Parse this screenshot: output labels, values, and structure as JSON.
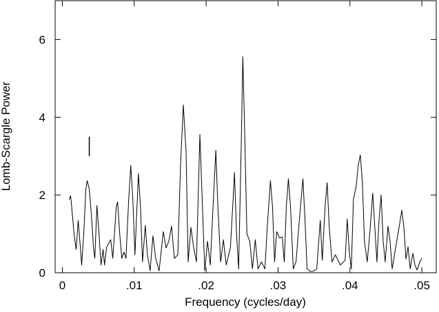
{
  "chart_data": {
    "type": "line",
    "xlabel": "Frequency (cycles/day)",
    "ylabel": "Lomb-Scargle Power",
    "xlim": [
      -0.001,
      0.052
    ],
    "ylim": [
      0,
      7
    ],
    "xticks": [
      0,
      {
        "value": 0.01,
        "label": ".01"
      },
      {
        "value": 0.02,
        "label": ".02"
      },
      {
        "value": 0.03,
        "label": ".03"
      },
      {
        "value": 0.04,
        "label": ".04"
      },
      {
        "value": 0.05,
        "label": ".05"
      }
    ],
    "yticks": [
      0,
      2,
      4,
      6
    ],
    "error_bar": {
      "x": 0.00375,
      "y": [
        3.0,
        3.5
      ]
    },
    "series": [
      {
        "color": "#000000",
        "x": [
          0.00096,
          0.00115,
          0.00125,
          0.00163,
          0.00192,
          0.00221,
          0.0024,
          0.00269,
          0.00298,
          0.00327,
          0.00346,
          0.00375,
          0.00404,
          0.00433,
          0.00452,
          0.00481,
          0.0051,
          0.00538,
          0.00567,
          0.00587,
          0.00615,
          0.00673,
          0.00702,
          0.0075,
          0.00769,
          0.00798,
          0.00827,
          0.00856,
          0.00885,
          0.00923,
          0.00952,
          0.00981,
          0.0101,
          0.01038,
          0.01058,
          0.01087,
          0.01115,
          0.01154,
          0.01183,
          0.01221,
          0.0126,
          0.01298,
          0.01346,
          0.01404,
          0.01442,
          0.01481,
          0.01519,
          0.01558,
          0.01606,
          0.01644,
          0.01683,
          0.01721,
          0.0175,
          0.01788,
          0.01827,
          0.01865,
          0.01913,
          0.01942,
          0.01981,
          0.02019,
          0.02058,
          0.02096,
          0.02135,
          0.02163,
          0.02202,
          0.0224,
          0.02279,
          0.02337,
          0.02375,
          0.02394,
          0.02423,
          0.02452,
          0.0249,
          0.0251,
          0.02538,
          0.02567,
          0.02606,
          0.02644,
          0.02683,
          0.02721,
          0.02769,
          0.02817,
          0.02856,
          0.02894,
          0.02923,
          0.02952,
          0.02981,
          0.03019,
          0.03058,
          0.03087,
          0.03115,
          0.03144,
          0.03173,
          0.03212,
          0.0325,
          0.03288,
          0.03346,
          0.03375,
          0.03404,
          0.03452,
          0.035,
          0.03538,
          0.03587,
          0.03615,
          0.03654,
          0.03683,
          0.03712,
          0.0375,
          0.03798,
          0.03865,
          0.03933,
          0.03962,
          0.0399,
          0.04019,
          0.04048,
          0.04087,
          0.04115,
          0.04144,
          0.04173,
          0.04202,
          0.0424,
          0.04279,
          0.04317,
          0.04346,
          0.04375,
          0.04404,
          0.04433,
          0.04462,
          0.0449,
          0.04529,
          0.04558,
          0.04587,
          0.04635,
          0.04683,
          0.04721,
          0.0475,
          0.04779,
          0.04808,
          0.04837,
          0.04875,
          0.04904,
          0.04933,
          0.04971,
          0.05
        ],
        "values": [
          1.88,
          1.98,
          1.8,
          1.0,
          0.6,
          1.35,
          0.9,
          0.2,
          1.0,
          2.15,
          2.37,
          2.15,
          1.5,
          0.65,
          0.37,
          1.73,
          1.0,
          0.2,
          0.6,
          0.2,
          0.65,
          0.85,
          0.37,
          1.7,
          1.82,
          1.0,
          0.37,
          0.53,
          0.37,
          1.88,
          2.76,
          1.88,
          0.46,
          1.7,
          2.55,
          1.7,
          0.28,
          1.22,
          0.46,
          0.05,
          0.95,
          0.37,
          0.05,
          1.06,
          0.64,
          0.81,
          1.2,
          0.37,
          0.46,
          2.76,
          4.32,
          3.1,
          0.28,
          1.17,
          0.64,
          0.28,
          3.56,
          2.05,
          0.05,
          0.81,
          0.2,
          1.7,
          3.15,
          1.7,
          0.28,
          0.85,
          0.2,
          0.64,
          1.88,
          2.58,
          1.0,
          0.1,
          3.47,
          5.56,
          3.47,
          1.0,
          0.81,
          0.1,
          0.85,
          0.1,
          0.28,
          0.1,
          1.35,
          2.37,
          1.7,
          0.28,
          1.06,
          0.9,
          0.92,
          0.28,
          1.7,
          2.42,
          1.7,
          0.1,
          0.28,
          1.17,
          2.42,
          1.35,
          0.1,
          0.03,
          0.05,
          0.1,
          1.35,
          0.32,
          1.7,
          2.32,
          1.17,
          0.28,
          0.46,
          0.2,
          0.32,
          1.38,
          0.55,
          0.1,
          1.88,
          2.23,
          2.76,
          3.03,
          2.32,
          0.81,
          0.28,
          1.08,
          2.05,
          1.17,
          0.28,
          1.35,
          2.0,
          0.81,
          0.28,
          1.2,
          0.81,
          0.1,
          0.64,
          1.17,
          1.61,
          1.17,
          0.35,
          0.67,
          0.1,
          0.5,
          0.2,
          0.07,
          0.28,
          0.37
        ]
      }
    ]
  }
}
